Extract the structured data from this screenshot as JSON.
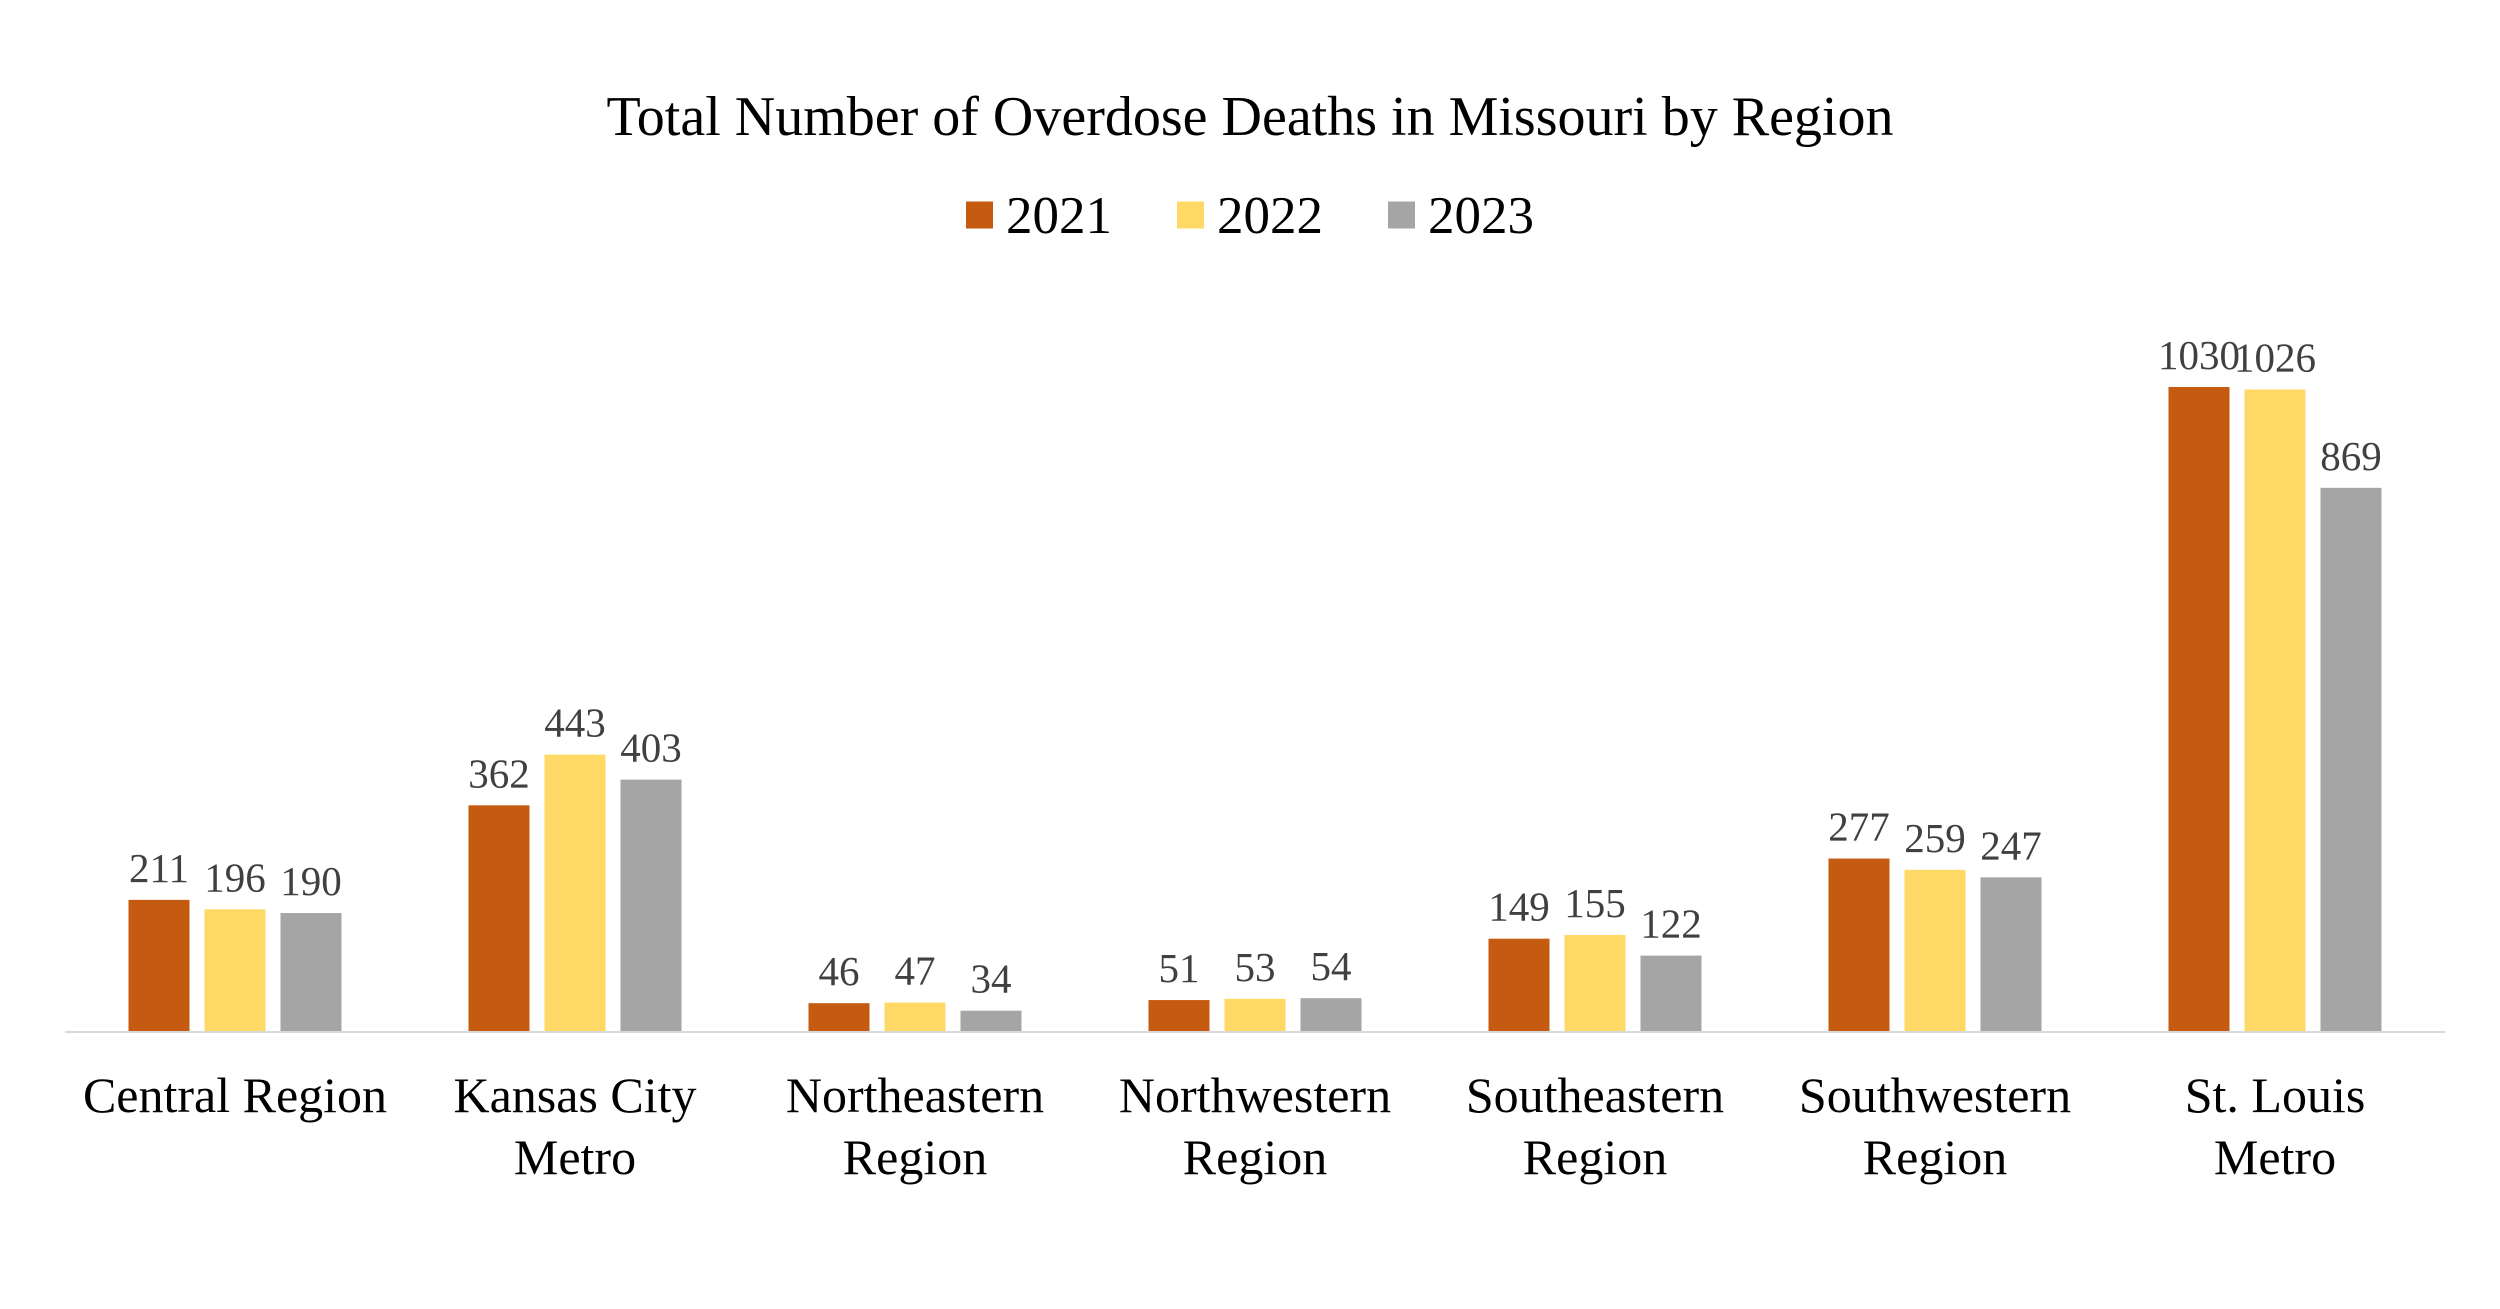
{
  "chart_data": {
    "type": "bar",
    "title": "Total Number of Overdose Deaths in Missouri by Region",
    "categories": [
      [
        "Central Region"
      ],
      [
        "Kansas City",
        "Metro"
      ],
      [
        "Northeastern",
        "Region"
      ],
      [
        "Northwestern",
        "Region"
      ],
      [
        "Southeastern",
        "Region"
      ],
      [
        "Southwestern",
        "Region"
      ],
      [
        "St. Louis",
        "Metro"
      ]
    ],
    "series": [
      {
        "name": "2021",
        "color": "#C55A11",
        "values": [
          211,
          362,
          46,
          51,
          149,
          277,
          1030
        ]
      },
      {
        "name": "2022",
        "color": "#FFD966",
        "values": [
          196,
          443,
          47,
          53,
          155,
          259,
          1026
        ]
      },
      {
        "name": "2023",
        "color": "#A5A5A5",
        "values": [
          190,
          403,
          34,
          54,
          122,
          247,
          869
        ]
      }
    ],
    "xlabel": "",
    "ylabel": "",
    "ylim": [
      0,
      1100
    ],
    "grid": false,
    "legend": "top-center",
    "data_labels": true,
    "axis_color": "#D9D9D9"
  }
}
